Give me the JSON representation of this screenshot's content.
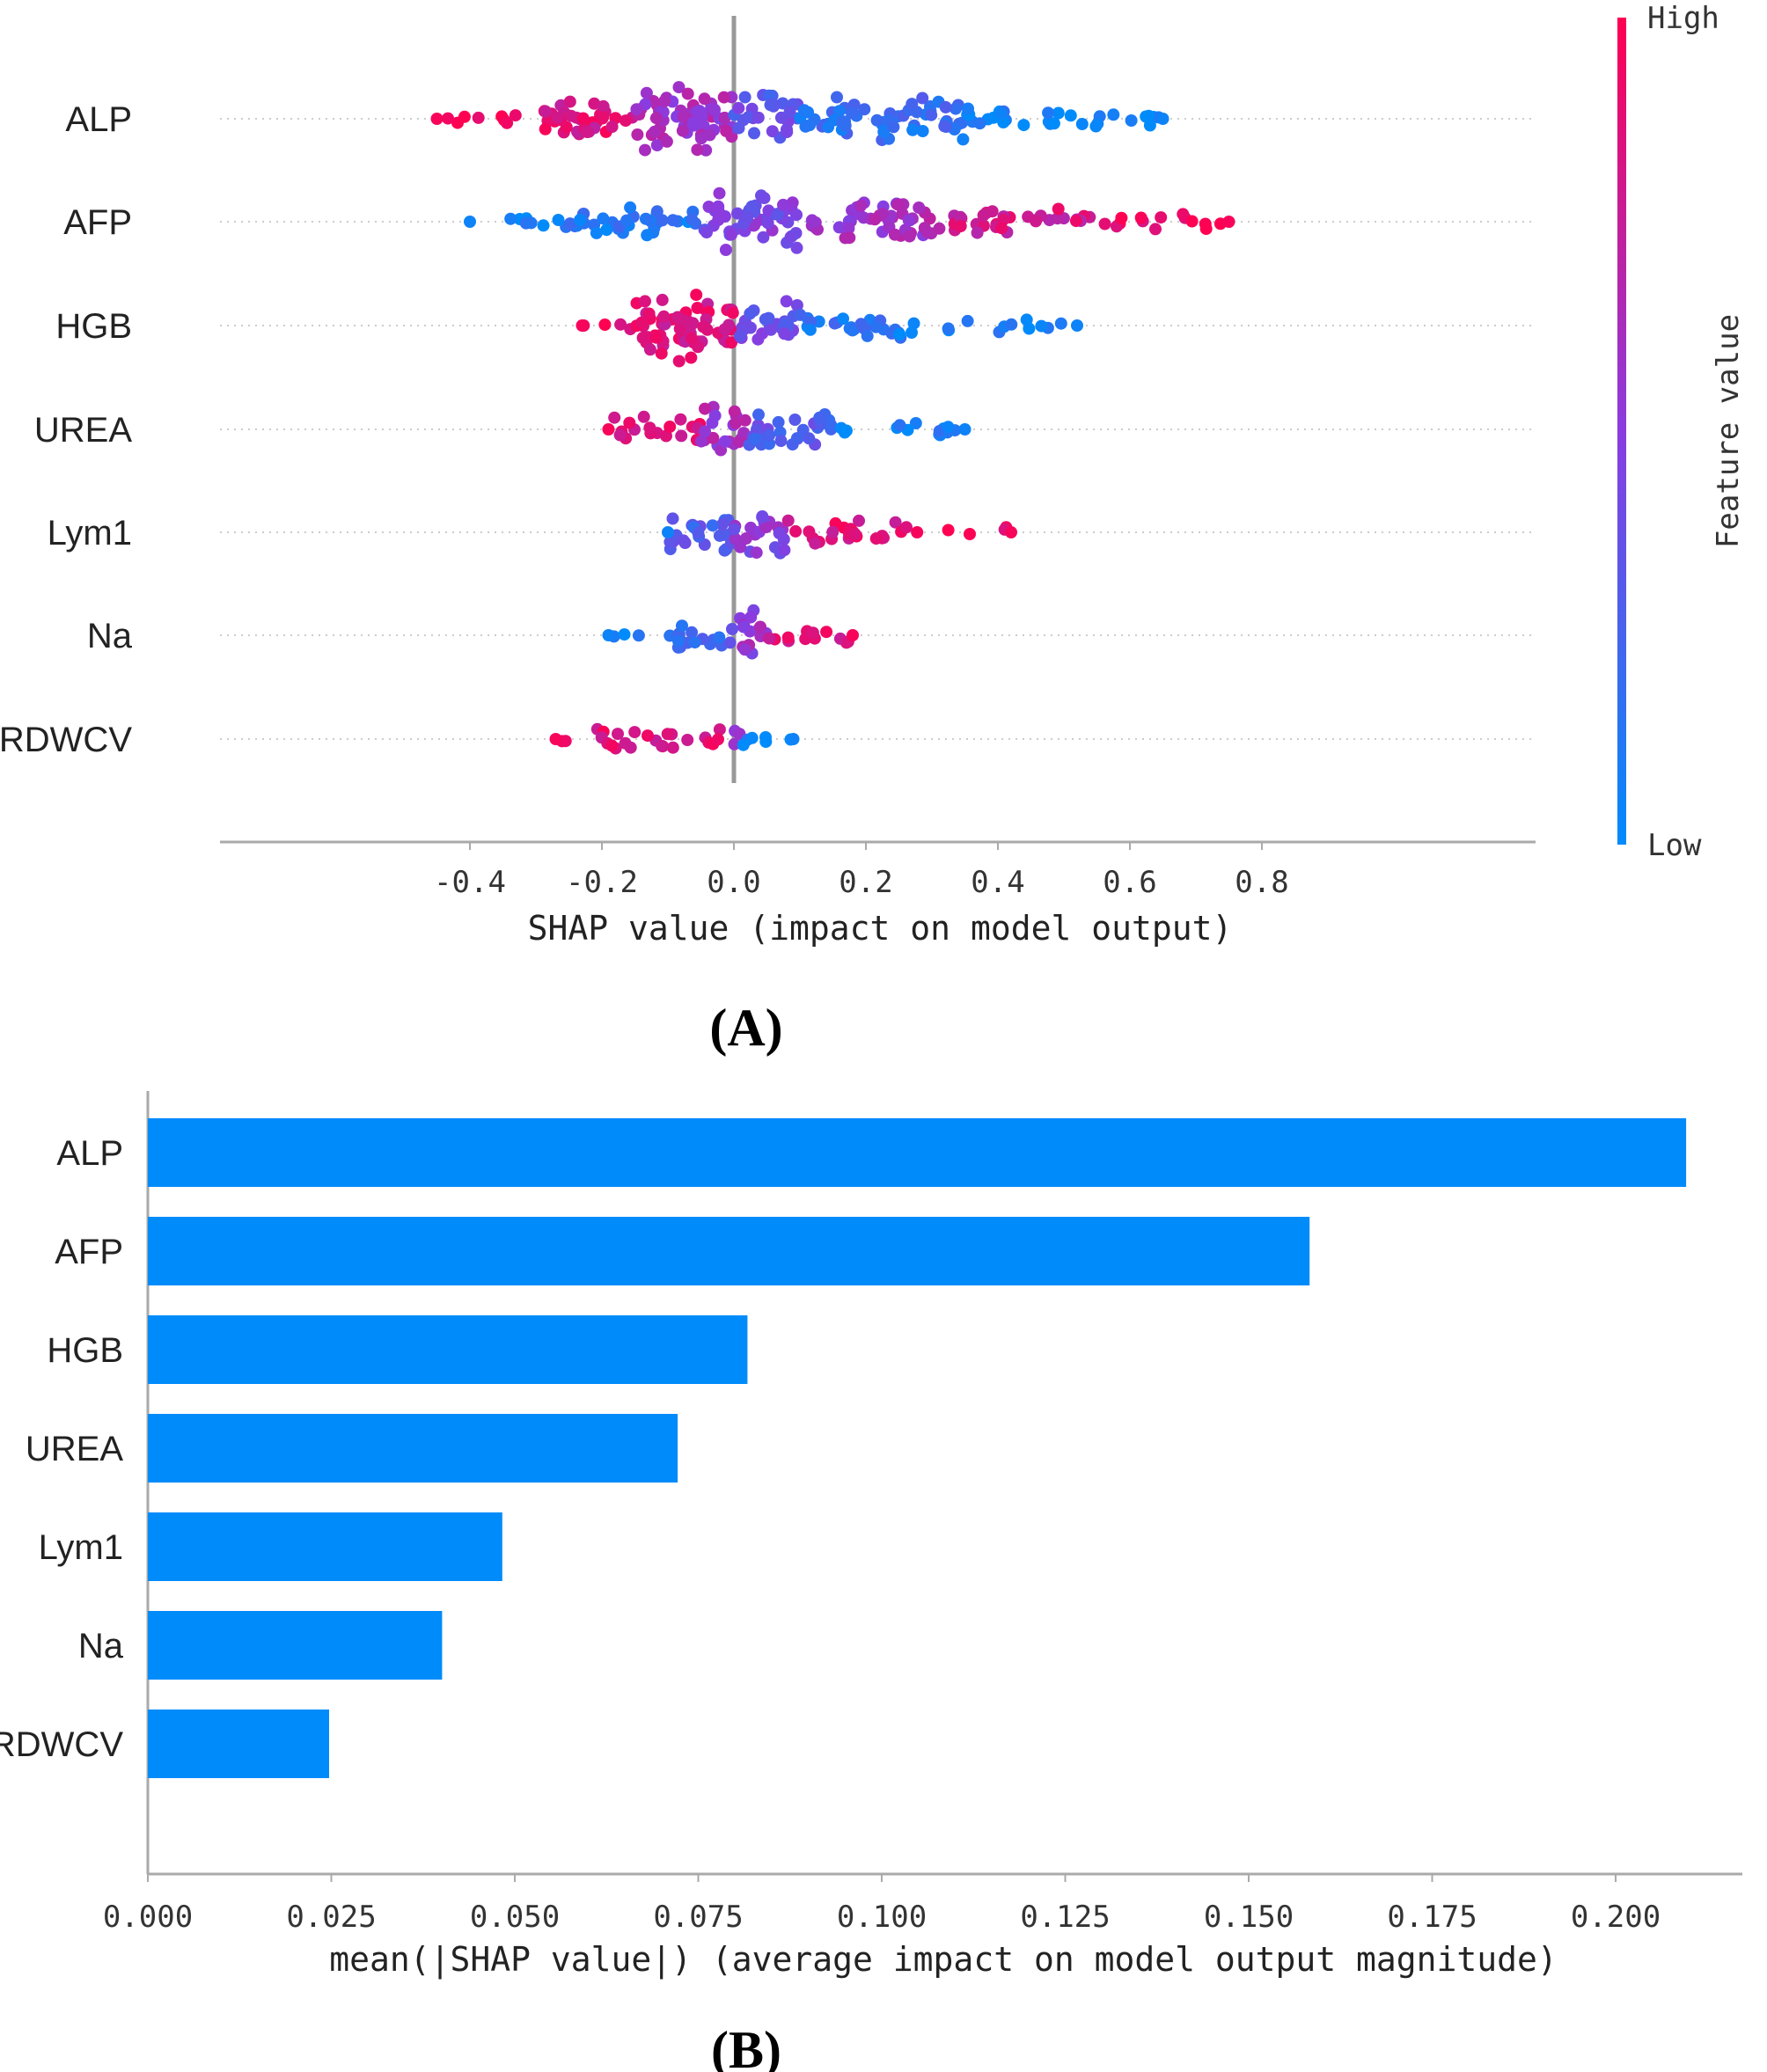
{
  "panel_a_label": "(A)",
  "panel_b_label": "(B)",
  "chart_data": [
    {
      "type": "scatter",
      "subtype": "shap-beeswarm",
      "title": "",
      "features": [
        "ALP",
        "AFP",
        "HGB",
        "UREA",
        "Lym1",
        "Na",
        "RDWCV"
      ],
      "xlabel": "SHAP value (impact on model output)",
      "ylabel": "",
      "xlim": [
        -0.52,
        0.8
      ],
      "xticks": [
        -0.4,
        -0.2,
        0.0,
        0.2,
        0.4,
        0.6,
        0.8
      ],
      "xtick_labels": [
        "-0.4",
        "-0.2",
        "0.0",
        "0.2",
        "0.4",
        "0.6",
        "0.8"
      ],
      "colorbar": {
        "label": "Feature value",
        "high": "High",
        "low": "Low",
        "color_high": "#ff0052",
        "color_low": "#008bfb"
      },
      "series": [
        {
          "name": "ALP",
          "min": -0.45,
          "max": 0.65,
          "neg_high": true,
          "segments": [
            [
              -0.45,
              -0.3,
              1.5,
              0.98
            ],
            [
              -0.3,
              -0.15,
              7,
              0.85
            ],
            [
              -0.15,
              0,
              12,
              0.6
            ],
            [
              0,
              0.1,
              8,
              0.35
            ],
            [
              0.1,
              0.35,
              7,
              0.18
            ],
            [
              0.35,
              0.65,
              3,
              0.05
            ]
          ]
        },
        {
          "name": "AFP",
          "min": -0.4,
          "max": 0.75,
          "neg_high": false,
          "segments": [
            [
              -0.4,
              -0.25,
              1.5,
              0.05
            ],
            [
              -0.25,
              -0.05,
              5,
              0.12
            ],
            [
              -0.05,
              0.1,
              10,
              0.45
            ],
            [
              0.1,
              0.3,
              7,
              0.6
            ],
            [
              0.3,
              0.55,
              4,
              0.8
            ],
            [
              0.55,
              0.75,
              2,
              0.95
            ]
          ]
        },
        {
          "name": "HGB",
          "min": -0.23,
          "max": 0.52,
          "neg_high": true,
          "segments": [
            [
              -0.23,
              -0.15,
              1.5,
              0.95
            ],
            [
              -0.15,
              0,
              13,
              0.85
            ],
            [
              0,
              0.1,
              8,
              0.4
            ],
            [
              0.1,
              0.3,
              4,
              0.12
            ],
            [
              0.3,
              0.52,
              1.5,
              0.05
            ]
          ]
        },
        {
          "name": "UREA",
          "min": -0.19,
          "max": 0.35,
          "neg_high": true,
          "segments": [
            [
              -0.19,
              -0.05,
              4,
              0.88
            ],
            [
              -0.05,
              0.02,
              9,
              0.6
            ],
            [
              0.02,
              0.15,
              7,
              0.3
            ],
            [
              0.15,
              0.35,
              2,
              0.05
            ]
          ]
        },
        {
          "name": "Lym1",
          "min": -0.1,
          "max": 0.42,
          "neg_high": false,
          "segments": [
            [
              -0.1,
              0,
              7,
              0.3
            ],
            [
              0,
              0.08,
              8,
              0.5
            ],
            [
              0.08,
              0.25,
              4,
              0.85
            ],
            [
              0.25,
              0.42,
              1.2,
              0.97
            ]
          ]
        },
        {
          "name": "Na",
          "min": -0.19,
          "max": 0.18,
          "neg_high": false,
          "segments": [
            [
              -0.19,
              -0.1,
              1,
              0.05
            ],
            [
              -0.1,
              0,
              5,
              0.25
            ],
            [
              0,
              0.05,
              9,
              0.55
            ],
            [
              0.05,
              0.18,
              3,
              0.85
            ]
          ]
        },
        {
          "name": "RDWCV",
          "min": -0.27,
          "max": 0.09,
          "neg_high": true,
          "segments": [
            [
              -0.27,
              -0.22,
              1,
              0.98
            ],
            [
              -0.22,
              0,
              3,
              0.85
            ],
            [
              0,
              0.01,
              10,
              0.5
            ],
            [
              0.01,
              0.09,
              2,
              0.05
            ]
          ]
        }
      ]
    },
    {
      "type": "bar",
      "orientation": "horizontal",
      "title": "",
      "categories": [
        "ALP",
        "AFP",
        "HGB",
        "UREA",
        "Lym1",
        "Na",
        "RDWCV"
      ],
      "values": [
        0.2096,
        0.1583,
        0.0817,
        0.0722,
        0.0483,
        0.0401,
        0.0247
      ],
      "xlabel": "mean(|SHAP value|) (average impact on model output magnitude)",
      "ylabel": "",
      "xlim": [
        0,
        0.218
      ],
      "xticks": [
        0,
        0.025,
        0.05,
        0.075,
        0.1,
        0.125,
        0.15,
        0.175,
        0.2
      ],
      "xtick_labels": [
        "0.000",
        "0.025",
        "0.050",
        "0.075",
        "0.100",
        "0.125",
        "0.150",
        "0.175",
        "0.200"
      ],
      "bar_color": "#008bfb"
    }
  ]
}
